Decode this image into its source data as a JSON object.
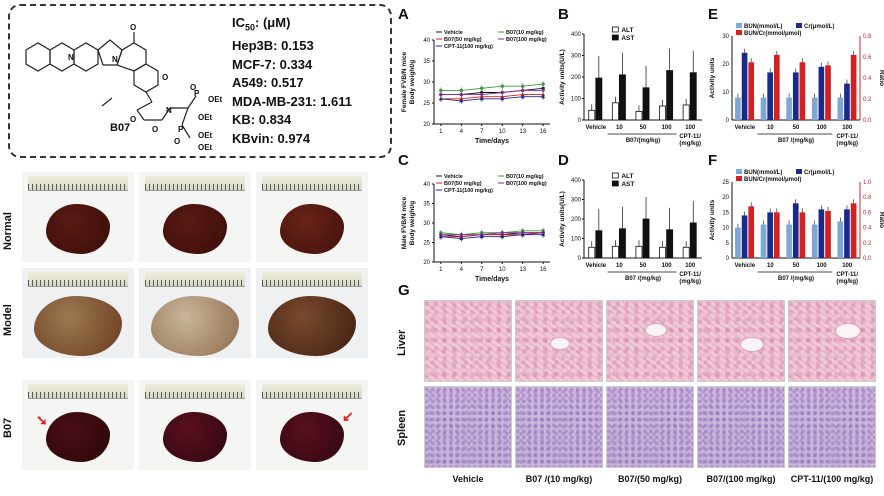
{
  "ic50": {
    "header": "IC",
    "header_sub": "50",
    "header_unit": ": (μM)",
    "rows": [
      {
        "label": "Hep3B:",
        "value": "0.153"
      },
      {
        "label": "MCF-7:",
        "value": "0.334"
      },
      {
        "label": "A549:",
        "value": "0.517"
      },
      {
        "label": "MDA-MB-231:",
        "value": "1.611"
      },
      {
        "label": "KB:",
        "value": "0.834"
      },
      {
        "label": "KBvin:",
        "value": "0.974"
      }
    ],
    "compound": "B07",
    "structure_labels": [
      "N",
      "N",
      "O",
      "O",
      "O",
      "OEt",
      "OEt",
      "OEt",
      "OEt",
      "P",
      "P",
      "N",
      "O",
      "O",
      "O"
    ]
  },
  "photos": {
    "row_labels": [
      "Normal",
      "Model",
      "B07"
    ]
  },
  "panels": {
    "A": {
      "letter": "A",
      "ylabel": "Female FVB/N mice Body weight/g",
      "xlabel": "Time/days",
      "yticks": [
        "40",
        "35",
        "30",
        "25",
        "20"
      ],
      "xticks": [
        "1",
        "4",
        "7",
        "10",
        "13",
        "16"
      ],
      "legend": [
        "Vehicle",
        "B07(10 mg/kg)",
        "B07(50 mg/kg)",
        "B07(100 mg/kg)",
        "CPT-11(100 mg/kg)"
      ]
    },
    "B": {
      "letter": "B",
      "ylabel": "Activity units(U/L)",
      "yticks": [
        "400",
        "300",
        "200",
        "100",
        "0"
      ],
      "legend": [
        "ALT",
        "AST"
      ],
      "xticks": [
        "Vehicle",
        "10",
        "50",
        "100",
        "100"
      ],
      "group_label": "B07/(mg/kg)",
      "cpt_label": "CPT-11/ (mg/kg)"
    },
    "C": {
      "letter": "C",
      "ylabel": "Male FVB/N mice Body weight/g",
      "xlabel": "Time/days",
      "yticks": [
        "40",
        "35",
        "30",
        "25",
        "20"
      ],
      "xticks": [
        "1",
        "4",
        "7",
        "10",
        "13",
        "16"
      ],
      "legend": [
        "Vehicle",
        "B07(10 mg/kg)",
        "B07(50 mg/kg)",
        "B07(100 mg/kg)",
        "CPT-11(100 mg/kg)"
      ]
    },
    "D": {
      "letter": "D",
      "ylabel": "Activity units(U/L)",
      "yticks": [
        "400",
        "300",
        "200",
        "100",
        "0"
      ],
      "legend": [
        "ALT",
        "AST"
      ],
      "xticks": [
        "Vehicle",
        "10",
        "50",
        "100",
        "100"
      ],
      "group_label": "B07 /(mg/kg)",
      "cpt_label": "CPT-11/ (mg/kg)"
    },
    "E": {
      "letter": "E",
      "ylabel": "Activity units",
      "ylabel2": "Ratio",
      "yticks": [
        "30",
        "20",
        "10",
        "0"
      ],
      "y2ticks": [
        "0.8",
        "0.6",
        "0.4",
        "0.2",
        "0.0"
      ],
      "legend": [
        "BUN(mmol/L)",
        "Cr(μmol/L)",
        "BUN/Cr(mmol/μmol)"
      ],
      "xticks": [
        "Vehicle",
        "10",
        "50",
        "100",
        "100"
      ],
      "group_label": "B07 /(mg/kg)",
      "cpt_label": "CPT-11/ (mg/kg)"
    },
    "F": {
      "letter": "F",
      "ylabel": "Activity units",
      "ylabel2": "Ratio",
      "yticks": [
        "25",
        "20",
        "15",
        "10",
        "5",
        "0"
      ],
      "y2ticks": [
        "1.0",
        "0.8",
        "0.6",
        "0.4",
        "0.2",
        "0.0"
      ],
      "legend": [
        "BUN(mmol/L)",
        "Cr(μmol/L)",
        "BUN/Cr(mmol/μmol)"
      ],
      "xticks": [
        "Vehicle",
        "10",
        "50",
        "100",
        "100"
      ],
      "group_label": "B07 /(mg/kg)",
      "cpt_label": "CPT-11/ (mg/kg)"
    },
    "G": {
      "letter": "G",
      "row_labels": [
        "Liver",
        "Spleen"
      ],
      "col_labels": [
        "Vehicle",
        "B07 /(10 mg/kg)",
        "B07/(50 mg/kg)",
        "B07/(100 mg/kg)",
        "CPT-11/(100 mg/kg)"
      ]
    }
  },
  "colors": {
    "black": "#111111",
    "red": "#d32020",
    "blue": "#2a2aa0",
    "lightblue": "#7fa7d6",
    "navy": "#1a2a8a"
  },
  "chart_data": [
    {
      "id": "A",
      "type": "line",
      "title": "",
      "xlabel": "Time/days",
      "ylabel": "Female FVB/N mice Body weight/g",
      "x": [
        1,
        4,
        7,
        10,
        13,
        16
      ],
      "ylim": [
        20,
        40
      ],
      "series": [
        {
          "name": "Vehicle",
          "values": [
            27,
            27,
            27.5,
            27.5,
            28,
            28.5
          ]
        },
        {
          "name": "B07(10 mg/kg)",
          "values": [
            28,
            28,
            28.5,
            29,
            29,
            29.5
          ]
        },
        {
          "name": "B07(50 mg/kg)",
          "values": [
            26,
            26,
            26.5,
            26.5,
            27,
            27
          ]
        },
        {
          "name": "B07(100 mg/kg)",
          "values": [
            27,
            27,
            27,
            27.5,
            28,
            28
          ]
        },
        {
          "name": "CPT-11(100 mg/kg)",
          "values": [
            26,
            25.5,
            26,
            26,
            26.5,
            26.5
          ]
        }
      ]
    },
    {
      "id": "B",
      "type": "bar",
      "ylabel": "Activity units(U/L)",
      "ylim": [
        0,
        400
      ],
      "categories": [
        "Vehicle",
        "10",
        "50",
        "100",
        "100"
      ],
      "series": [
        {
          "name": "ALT",
          "values": [
            45,
            80,
            40,
            65,
            70
          ]
        },
        {
          "name": "AST",
          "values": [
            195,
            210,
            150,
            230,
            220
          ]
        }
      ]
    },
    {
      "id": "C",
      "type": "line",
      "xlabel": "Time/days",
      "ylabel": "Male FVB/N mice Body weight/g",
      "x": [
        1,
        4,
        7,
        10,
        13,
        16
      ],
      "ylim": [
        20,
        40
      ],
      "series": [
        {
          "name": "Vehicle",
          "values": [
            27,
            26.5,
            27,
            27,
            27.5,
            27.5
          ]
        },
        {
          "name": "B07(10 mg/kg)",
          "values": [
            27.5,
            27,
            27.5,
            27.5,
            28,
            28
          ]
        },
        {
          "name": "B07(50 mg/kg)",
          "values": [
            26.5,
            26.5,
            27,
            27,
            27,
            27.5
          ]
        },
        {
          "name": "B07(100 mg/kg)",
          "values": [
            27,
            27,
            27,
            27.5,
            27.5,
            27.5
          ]
        },
        {
          "name": "CPT-11(100 mg/kg)",
          "values": [
            26.5,
            26,
            26.5,
            26.5,
            27,
            27
          ]
        }
      ]
    },
    {
      "id": "D",
      "type": "bar",
      "ylabel": "Activity units(U/L)",
      "ylim": [
        0,
        400
      ],
      "categories": [
        "Vehicle",
        "10",
        "50",
        "100",
        "100"
      ],
      "series": [
        {
          "name": "ALT",
          "values": [
            55,
            60,
            60,
            55,
            55
          ]
        },
        {
          "name": "AST",
          "values": [
            140,
            150,
            200,
            145,
            180
          ]
        }
      ]
    },
    {
      "id": "E",
      "type": "bar",
      "ylabel": "Activity units",
      "ylabel2": "Ratio",
      "ylim": [
        0,
        30
      ],
      "y2lim": [
        0,
        0.8
      ],
      "categories": [
        "Vehicle",
        "10",
        "50",
        "100",
        "100"
      ],
      "series": [
        {
          "name": "BUN(mmol/L)",
          "values": [
            8,
            8,
            8,
            8,
            8
          ]
        },
        {
          "name": "Cr(μmol/L)",
          "values": [
            24,
            17,
            17,
            19,
            13
          ]
        },
        {
          "name": "BUN/Cr(mmol/μmol)",
          "axis": "right",
          "values": [
            0.55,
            0.62,
            0.55,
            0.52,
            0.62
          ]
        }
      ]
    },
    {
      "id": "F",
      "type": "bar",
      "ylabel": "Activity units",
      "ylabel2": "Ratio",
      "ylim": [
        0,
        25
      ],
      "y2lim": [
        0,
        1.0
      ],
      "categories": [
        "Vehicle",
        "10",
        "50",
        "100",
        "100"
      ],
      "series": [
        {
          "name": "BUN(mmol/L)",
          "values": [
            10,
            11,
            11,
            11,
            12
          ]
        },
        {
          "name": "Cr(μmol/L)",
          "values": [
            14,
            15,
            18,
            16,
            16
          ]
        },
        {
          "name": "BUN/Cr(mmol/μmol)",
          "axis": "right",
          "values": [
            0.68,
            0.6,
            0.6,
            0.62,
            0.72
          ]
        }
      ]
    }
  ]
}
